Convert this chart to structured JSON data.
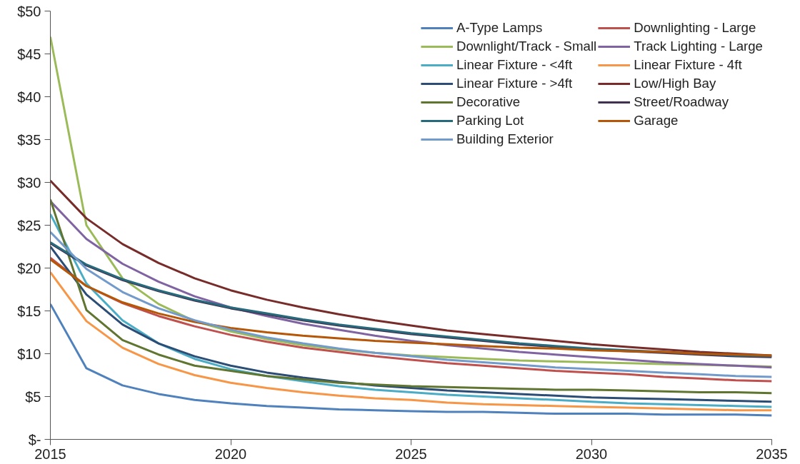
{
  "chart_data": {
    "type": "line",
    "x": [
      2015,
      2016,
      2017,
      2018,
      2019,
      2020,
      2021,
      2022,
      2023,
      2024,
      2025,
      2026,
      2027,
      2028,
      2029,
      2030,
      2031,
      2032,
      2033,
      2034,
      2035
    ],
    "xlim": [
      2015,
      2035
    ],
    "xticks": [
      2015,
      2020,
      2025,
      2030,
      2035
    ],
    "ylim": [
      0,
      50
    ],
    "yticks": [
      {
        "value": 0,
        "label": "$-"
      },
      {
        "value": 5,
        "label": "$5"
      },
      {
        "value": 10,
        "label": "$10"
      },
      {
        "value": 15,
        "label": "$15"
      },
      {
        "value": 20,
        "label": "$20"
      },
      {
        "value": 25,
        "label": "$25"
      },
      {
        "value": 30,
        "label": "$30"
      },
      {
        "value": 35,
        "label": "$35"
      },
      {
        "value": 40,
        "label": "$40"
      },
      {
        "value": 45,
        "label": "$45"
      },
      {
        "value": 50,
        "label": "$50"
      }
    ],
    "grid": false,
    "legend": "top right",
    "marker": "none",
    "line_style": "solid",
    "series": [
      {
        "name": "A-Type Lamps",
        "color": "#4f81bd",
        "values": [
          15.8,
          8.3,
          6.3,
          5.3,
          4.6,
          4.2,
          3.9,
          3.7,
          3.5,
          3.4,
          3.3,
          3.2,
          3.2,
          3.1,
          3.0,
          3.0,
          3.0,
          2.9,
          2.9,
          2.9,
          2.8
        ]
      },
      {
        "name": "Downlighting - Large",
        "color": "#c0504d",
        "values": [
          21.2,
          17.9,
          15.9,
          14.4,
          13.2,
          12.2,
          11.4,
          10.7,
          10.2,
          9.7,
          9.3,
          8.9,
          8.6,
          8.3,
          8.0,
          7.8,
          7.6,
          7.3,
          7.1,
          6.9,
          6.8
        ]
      },
      {
        "name": "Downlight/Track - Small",
        "color": "#9bbb59",
        "values": [
          47.0,
          25.0,
          18.8,
          15.8,
          13.8,
          12.6,
          11.7,
          11.0,
          10.5,
          10.1,
          9.8,
          9.6,
          9.4,
          9.2,
          9.1,
          9.0,
          8.9,
          8.8,
          8.7,
          8.6,
          8.5
        ]
      },
      {
        "name": "Track Lighting - Large",
        "color": "#8064a2",
        "values": [
          27.8,
          23.4,
          20.5,
          18.4,
          16.7,
          15.4,
          14.4,
          13.5,
          12.8,
          12.1,
          11.5,
          11.0,
          10.6,
          10.2,
          9.9,
          9.6,
          9.3,
          9.0,
          8.8,
          8.6,
          8.4
        ]
      },
      {
        "name": "Linear Fixture - <4ft",
        "color": "#4bacc6",
        "values": [
          26.3,
          18.2,
          13.9,
          11.2,
          9.4,
          8.2,
          7.4,
          6.8,
          6.2,
          5.8,
          5.5,
          5.2,
          5.0,
          4.8,
          4.6,
          4.4,
          4.2,
          4.1,
          4.0,
          3.9,
          3.8
        ]
      },
      {
        "name": "Linear Fixture - 4ft",
        "color": "#f79646",
        "values": [
          19.5,
          13.8,
          10.7,
          8.8,
          7.5,
          6.6,
          6.0,
          5.5,
          5.1,
          4.8,
          4.6,
          4.3,
          4.1,
          4.0,
          3.9,
          3.8,
          3.7,
          3.6,
          3.5,
          3.4,
          3.4
        ]
      },
      {
        "name": "Linear Fixture - >4ft",
        "color": "#2c4d75",
        "values": [
          22.5,
          16.9,
          13.4,
          11.2,
          9.7,
          8.6,
          7.8,
          7.2,
          6.7,
          6.3,
          6.0,
          5.7,
          5.5,
          5.3,
          5.1,
          4.9,
          4.8,
          4.7,
          4.6,
          4.5,
          4.4
        ]
      },
      {
        "name": "Low/High Bay",
        "color": "#772c2a",
        "values": [
          30.2,
          25.8,
          22.8,
          20.6,
          18.8,
          17.4,
          16.3,
          15.4,
          14.6,
          13.9,
          13.3,
          12.7,
          12.3,
          11.9,
          11.5,
          11.1,
          10.8,
          10.5,
          10.2,
          10.0,
          9.8
        ]
      },
      {
        "name": "Decorative",
        "color": "#5f7530",
        "values": [
          28.0,
          15.1,
          11.6,
          9.9,
          8.6,
          8.0,
          7.4,
          7.0,
          6.6,
          6.4,
          6.2,
          6.1,
          6.0,
          5.9,
          5.8,
          5.8,
          5.7,
          5.6,
          5.5,
          5.5,
          5.4
        ]
      },
      {
        "name": "Street/Roadway",
        "color": "#403152",
        "values": [
          22.9,
          20.3,
          18.6,
          17.3,
          16.2,
          15.3,
          14.6,
          13.9,
          13.3,
          12.8,
          12.3,
          11.9,
          11.5,
          11.1,
          10.8,
          10.5,
          10.3,
          10.1,
          9.9,
          9.7,
          9.6
        ]
      },
      {
        "name": "Parking Lot",
        "color": "#276a7c",
        "values": [
          23.0,
          20.4,
          18.7,
          17.4,
          16.3,
          15.4,
          14.7,
          14.0,
          13.4,
          12.9,
          12.4,
          12.0,
          11.6,
          11.2,
          10.9,
          10.6,
          10.4,
          10.2,
          10.0,
          9.8,
          9.7
        ]
      },
      {
        "name": "Garage",
        "color": "#b65708",
        "values": [
          21.0,
          17.9,
          16.0,
          14.7,
          13.7,
          13.0,
          12.5,
          12.1,
          11.8,
          11.5,
          11.3,
          11.1,
          10.9,
          10.7,
          10.6,
          10.4,
          10.3,
          10.2,
          10.0,
          9.9,
          9.8
        ]
      },
      {
        "name": "Building Exterior",
        "color": "#729aca",
        "values": [
          24.2,
          19.9,
          17.2,
          15.3,
          13.9,
          12.8,
          11.9,
          11.2,
          10.6,
          10.1,
          9.7,
          9.3,
          9.0,
          8.7,
          8.4,
          8.2,
          8.0,
          7.8,
          7.6,
          7.4,
          7.3
        ]
      }
    ]
  }
}
